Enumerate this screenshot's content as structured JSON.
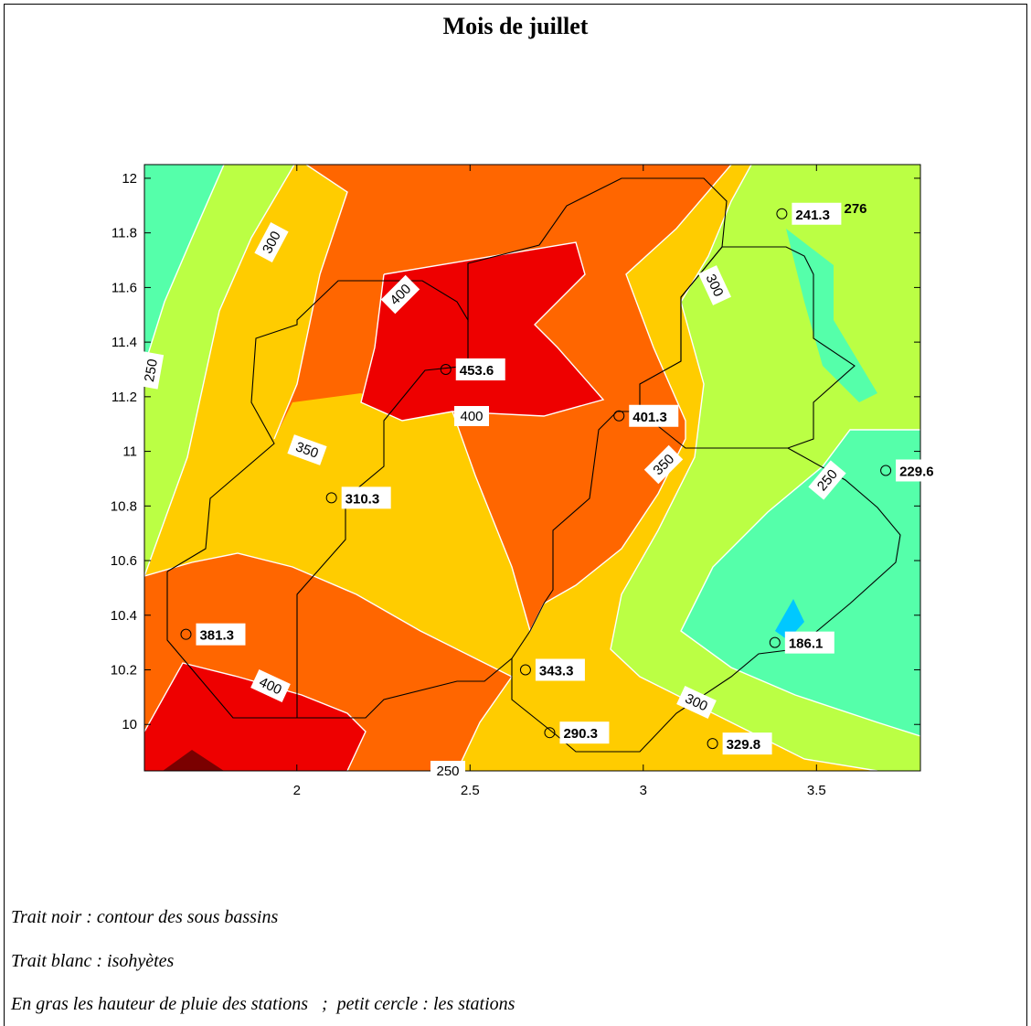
{
  "title": "Mois de juillet",
  "notes": [
    "Trait noir : contour des sous bassins",
    "Trait blanc : isohyètes",
    "En gras les hauteur de pluie des stations   ;  petit cercle : les stations"
  ],
  "colors": {
    "v150": "#00C8FF",
    "v200": "#55FFAA",
    "v250": "#BBFF44",
    "v300": "#FFCC00",
    "v350": "#FF6600",
    "v400": "#EE0000",
    "v450": "#7A0000",
    "isohyet": "#FFFFFF",
    "basin": "#000000"
  },
  "chart_data": {
    "type": "contour",
    "title": "Mois de juillet",
    "xlim": [
      1.56,
      3.8
    ],
    "ylim": [
      9.83,
      12.05
    ],
    "xticks": [
      "2",
      "2.5",
      "3",
      "3.5"
    ],
    "yticks": [
      "10",
      "10.2",
      "10.4",
      "10.6",
      "10.8",
      "11",
      "11.2",
      "11.4",
      "11.6",
      "11.8",
      "12"
    ],
    "contour_labels": [
      "300",
      "250",
      "400",
      "350",
      "400",
      "300",
      "350",
      "250",
      "300",
      "400",
      "250",
      "276"
    ],
    "stations": [
      {
        "x": 2.43,
        "y": 11.3,
        "value": "453.6"
      },
      {
        "x": 2.93,
        "y": 11.13,
        "value": "401.3"
      },
      {
        "x": 2.1,
        "y": 10.83,
        "value": "310.3"
      },
      {
        "x": 1.68,
        "y": 10.33,
        "value": "381.3"
      },
      {
        "x": 2.66,
        "y": 10.2,
        "value": "343.3"
      },
      {
        "x": 2.73,
        "y": 9.97,
        "value": "290.3"
      },
      {
        "x": 3.2,
        "y": 9.93,
        "value": "329.8"
      },
      {
        "x": 3.38,
        "y": 10.3,
        "value": "186.1"
      },
      {
        "x": 3.4,
        "y": 11.87,
        "value": "241.3"
      },
      {
        "x": 3.7,
        "y": 10.93,
        "value": "229.6"
      }
    ]
  }
}
